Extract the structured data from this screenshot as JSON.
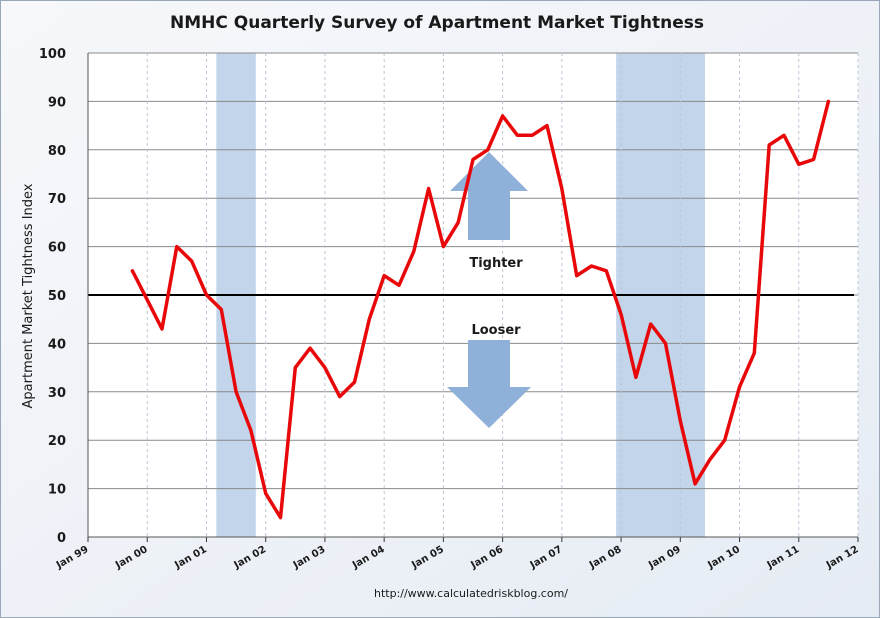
{
  "chart_data": {
    "type": "line",
    "title": "NMHC Quarterly Survey of Apartment Market Tightness",
    "ylabel": "Apartment Market Tightness Index",
    "xlabel": "",
    "ylim": [
      0,
      100
    ],
    "yticks": [
      "0",
      "10",
      "20",
      "30",
      "40",
      "50",
      "60",
      "70",
      "80",
      "90",
      "100"
    ],
    "xlim": [
      "1999-01",
      "2012-01"
    ],
    "xticks": [
      "Jan 99",
      "Jan 00",
      "Jan 01",
      "Jan 02",
      "Jan 03",
      "Jan 04",
      "Jan 05",
      "Jan 06",
      "Jan 07",
      "Jan 08",
      "Jan 09",
      "Jan 10",
      "Jan 11",
      "Jan 12"
    ],
    "grid": true,
    "reference_line": {
      "value": 50,
      "color": "#000000"
    },
    "recessions": [
      {
        "start": "2001-03",
        "end": "2001-11"
      },
      {
        "start": "2007-12",
        "end": "2009-06"
      }
    ],
    "annotations": {
      "tighter": "Tighter",
      "looser": "Looser"
    },
    "source": "http://www.calculatedriskblog.com/",
    "series": [
      {
        "color": "#e8080a",
        "points": [
          [
            "1999-10",
            55
          ],
          [
            "2000-01",
            49
          ],
          [
            "2000-04",
            43
          ],
          [
            "2000-07",
            60
          ],
          [
            "2000-10",
            57
          ],
          [
            "2001-01",
            50
          ],
          [
            "2001-04",
            47
          ],
          [
            "2001-07",
            30
          ],
          [
            "2001-10",
            22
          ],
          [
            "2002-01",
            9
          ],
          [
            "2002-04",
            4
          ],
          [
            "2002-07",
            35
          ],
          [
            "2002-10",
            39
          ],
          [
            "2003-01",
            35
          ],
          [
            "2003-04",
            29
          ],
          [
            "2003-07",
            32
          ],
          [
            "2003-10",
            45
          ],
          [
            "2004-01",
            54
          ],
          [
            "2004-04",
            52
          ],
          [
            "2004-07",
            59
          ],
          [
            "2004-10",
            72
          ],
          [
            "2005-01",
            60
          ],
          [
            "2005-04",
            65
          ],
          [
            "2005-07",
            78
          ],
          [
            "2005-10",
            80
          ],
          [
            "2006-01",
            87
          ],
          [
            "2006-04",
            83
          ],
          [
            "2006-07",
            83
          ],
          [
            "2006-10",
            85
          ],
          [
            "2007-01",
            72
          ],
          [
            "2007-04",
            54
          ],
          [
            "2007-07",
            56
          ],
          [
            "2007-10",
            55
          ],
          [
            "2008-01",
            46
          ],
          [
            "2008-04",
            33
          ],
          [
            "2008-07",
            44
          ],
          [
            "2008-10",
            40
          ],
          [
            "2009-01",
            24
          ],
          [
            "2009-04",
            11
          ],
          [
            "2009-07",
            16
          ],
          [
            "2009-10",
            20
          ],
          [
            "2010-01",
            31
          ],
          [
            "2010-04",
            38
          ],
          [
            "2010-07",
            81
          ],
          [
            "2010-10",
            83
          ],
          [
            "2011-01",
            77
          ],
          [
            "2011-04",
            78
          ],
          [
            "2011-07",
            90
          ]
        ]
      }
    ]
  },
  "colors": {
    "recession_band": "#c3d5ea",
    "grid_h": "#8a8a8a",
    "grid_v": "#bcc6d6",
    "arrow": "#8fb1d9",
    "line": "#e8080a"
  }
}
